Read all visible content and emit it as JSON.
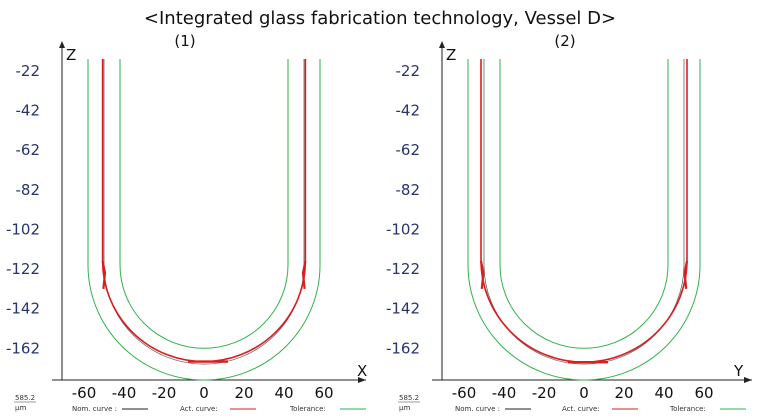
{
  "title": "<Integrated glass fabrication technology, Vessel D>",
  "colors": {
    "nominal": "#222222",
    "actual": "#d81e1e",
    "tolerance": "#33b24a",
    "ytick": "#27356b"
  },
  "chart_data": [
    {
      "type": "line",
      "panel_label": "(1)",
      "x_axis_label": "X",
      "z_axis_label": "Z",
      "xlim": [
        -75,
        75
      ],
      "ylim": [
        -178,
        -14
      ],
      "x_ticks": [
        -60,
        -40,
        -20,
        0,
        20,
        40,
        60
      ],
      "y_ticks": [
        -22,
        -42,
        -62,
        -82,
        -102,
        -122,
        -142,
        -162
      ],
      "scale_value": "585.2",
      "scale_unit": "µm",
      "legend": {
        "nominal": "Nom. curve :",
        "actual": "Act. curve:",
        "tolerance": "Tolerance:"
      },
      "shape": {
        "radius": 50,
        "tolerance_offset": 8,
        "bottom_center_z": -120,
        "top_z": -16,
        "actual": {
          "left_wall_x": -50.7,
          "right_wall_x": 50.7,
          "bottom_z": -168.7,
          "radius_scale": 1.0
        }
      }
    },
    {
      "type": "line",
      "panel_label": "(2)",
      "x_axis_label": "Y",
      "z_axis_label": "Z",
      "xlim": [
        -75,
        75
      ],
      "ylim": [
        -178,
        -14
      ],
      "x_ticks": [
        -60,
        -40,
        -20,
        0,
        20,
        40,
        60
      ],
      "y_ticks": [
        -22,
        -42,
        -62,
        -82,
        -102,
        -122,
        -142,
        -162
      ],
      "scale_value": "585.2",
      "scale_unit": "µm",
      "legend": {
        "nominal": "Nom. curve :",
        "actual": "Act. curve:",
        "tolerance": "Tolerance:"
      },
      "shape": {
        "radius": 50,
        "tolerance_offset": 8,
        "bottom_center_z": -120,
        "top_z": -16,
        "actual": {
          "left_wall_x": -51.5,
          "right_wall_x": 51.5,
          "bottom_z": -169.0,
          "radius_scale": 1.0
        }
      }
    }
  ]
}
